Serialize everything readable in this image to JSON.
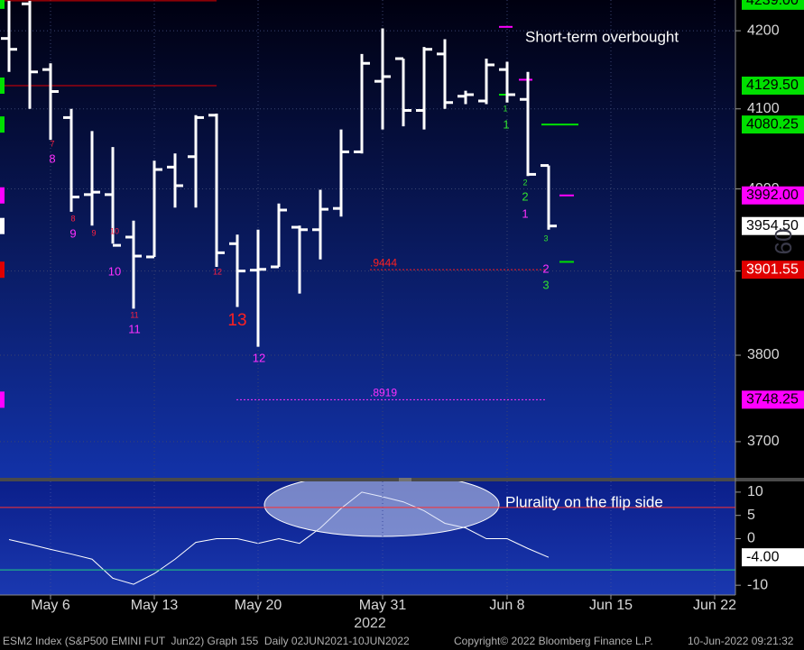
{
  "chart_data": [
    {
      "type": "ohlc",
      "categories": [
        null,
        null,
        "May 6",
        null,
        null,
        null,
        null,
        "May 13",
        null,
        null,
        null,
        null,
        "May 20",
        null,
        null,
        null,
        null,
        null,
        "May 31",
        null,
        null,
        null,
        null,
        null,
        "Jun 8",
        null,
        null,
        null,
        null,
        "Jun 15",
        null,
        null,
        null,
        null,
        "Jun 22"
      ],
      "x_year": "2022",
      "open": [
        4190,
        4235,
        4150,
        4089,
        3993,
        3993,
        3941,
        3917,
        4027,
        4040,
        4092,
        3933,
        3901,
        3905,
        3953,
        3950,
        3976,
        4046,
        4135,
        4164,
        4098,
        4170,
        4116,
        4110,
        4150,
        4112,
        4029,
        null,
        null,
        null,
        null,
        null,
        null,
        null,
        null
      ],
      "high": [
        4239,
        4239,
        4158,
        4100,
        4072,
        4052,
        3961,
        4035,
        4044,
        4092,
        4094,
        3944,
        3950,
        3982,
        3955,
        3999,
        4074,
        4170,
        4203,
        4164,
        4179,
        4189,
        4123,
        4164,
        4160,
        4147,
        4029,
        null,
        null,
        null,
        null,
        null,
        null,
        null,
        null
      ],
      "low": [
        4147,
        4100,
        4061,
        3972,
        3955,
        3933,
        3855,
        3917,
        3977,
        3977,
        3905,
        3857,
        3810,
        3905,
        3873,
        3914,
        3966,
        4044,
        4074,
        4078,
        4074,
        4100,
        4106,
        4106,
        4108,
        4016,
        3950,
        null,
        null,
        null,
        null,
        null,
        null,
        null,
        null
      ],
      "close": [
        4176,
        4147,
        4122,
        3990,
        3996,
        3931,
        3918,
        4024,
        4004,
        4089,
        3922,
        3900,
        3902,
        3974,
        3950,
        3975,
        4046,
        4158,
        4141,
        4098,
        4176,
        4108,
        4118,
        4156,
        4118,
        4018,
        3954.5,
        null,
        null,
        null,
        null,
        null,
        null,
        null,
        null
      ],
      "color": "#ffffff",
      "ylim": [
        3659,
        4240
      ],
      "log_scale": true,
      "yticks": [
        3700,
        3800,
        3900,
        4000,
        4100,
        4200
      ],
      "grid": true,
      "price_labels": [
        {
          "value": 4239,
          "label": "4239.00",
          "color": "#00e000",
          "text_color": "#000000"
        },
        {
          "value": 4129.5,
          "label": "4129.50",
          "color": "#00e000",
          "text_color": "#000000"
        },
        {
          "value": 4080.25,
          "label": "4080.25",
          "color": "#00e000",
          "text_color": "#000000"
        },
        {
          "value": 3992,
          "label": "3992.00",
          "color": "#ff00ff",
          "text_color": "#000000"
        },
        {
          "value": 3954.5,
          "label": "3954.50",
          "color": "#ffffff",
          "text_color": "#000000"
        },
        {
          "value": 3901.55,
          "label": "3901.55",
          "color": "#e00000",
          "text_color": "#ffffff"
        },
        {
          "value": 3748.25,
          "label": "3748.25",
          "color": "#ff00ff",
          "text_color": "#000000"
        }
      ],
      "levels": [
        {
          "value": 4239,
          "color": "#e00000"
        },
        {
          "value": 4129.5,
          "color": "#e00000"
        },
        {
          "value": 4205,
          "color": "#ff00ff"
        },
        {
          "value": 4118,
          "color": "#00e000"
        },
        {
          "value": 4137,
          "color": "#ff00ff"
        },
        {
          "value": 4080.25,
          "color": "#00e000"
        },
        {
          "value": 3992,
          "color": "#ff00ff"
        },
        {
          "value": 3911,
          "color": "#00e000"
        }
      ],
      "fib_lines": [
        {
          "value": 3901.55,
          "label": ".9444",
          "color": "#ff2020"
        },
        {
          "value": 3748.25,
          "label": ".8919",
          "color": "#ff30ff"
        }
      ],
      "annotation": "Short-term overbought",
      "watermark": "60",
      "td_counts": [
        {
          "text": "7",
          "color": "#ff2040"
        },
        {
          "text": "8",
          "color": "#ff30ff"
        },
        {
          "text": "8",
          "color": "#ff2040"
        },
        {
          "text": "9",
          "color": "#ff30ff"
        },
        {
          "text": "9",
          "color": "#ff2040"
        },
        {
          "text": "10",
          "color": "#ff2040"
        },
        {
          "text": "10",
          "color": "#ff30ff"
        },
        {
          "text": "11",
          "color": "#ff2040"
        },
        {
          "text": "11",
          "color": "#ff30ff"
        },
        {
          "text": "12",
          "color": "#ff2040"
        },
        {
          "text": "13",
          "color": "#ff2020"
        },
        {
          "text": "12",
          "color": "#ff30ff"
        },
        {
          "text": "1",
          "color": "#30e030"
        },
        {
          "text": "1",
          "color": "#30e030"
        },
        {
          "text": "2",
          "color": "#30e030"
        },
        {
          "text": "2",
          "color": "#30e030"
        },
        {
          "text": "1",
          "color": "#ff30ff"
        },
        {
          "text": "3",
          "color": "#30e030"
        },
        {
          "text": "2",
          "color": "#ff30ff"
        },
        {
          "text": "3",
          "color": "#30e030"
        }
      ]
    },
    {
      "type": "line",
      "values": [
        -0.2,
        -1.2,
        -2.3,
        -3.3,
        -4.4,
        -8.5,
        -9.8,
        -7.5,
        -4.4,
        -0.8,
        0,
        0,
        -1,
        0,
        -1,
        2.3,
        6.5,
        10,
        9,
        7.9,
        6,
        3.3,
        2.3,
        0,
        0,
        -2.1,
        -4,
        null,
        null,
        null,
        null,
        null,
        null,
        null,
        null
      ],
      "color": "#ffffff",
      "ylim": [
        -12.1,
        12.3
      ],
      "yticks": [
        -10,
        0,
        5,
        10
      ],
      "grid": true,
      "last_label": {
        "value": -4,
        "label": "-4.00"
      },
      "hlines": [
        {
          "value": 6.7,
          "color": "#ff3030"
        },
        {
          "value": -6.7,
          "color": "#20d080"
        }
      ],
      "annotation": "Plurality on the flip side"
    }
  ],
  "footer": {
    "left": "ESM2 Index (S&P500 EMINI FUT  Jun22) Graph 155  Daily 02JUN2021-10JUN2022",
    "copyright": "Copyright© 2022 Bloomberg Finance L.P.",
    "timestamp": "10-Jun-2022 09:21:32"
  }
}
